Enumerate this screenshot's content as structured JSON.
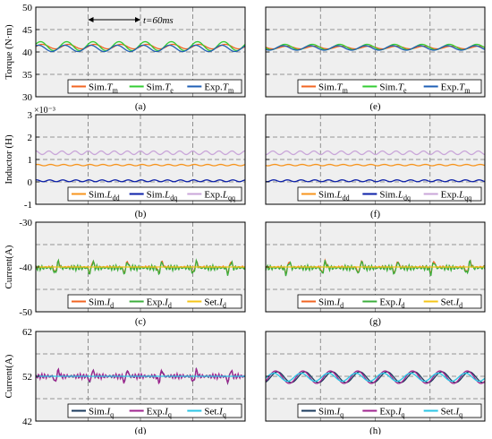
{
  "figure": {
    "background_plot": "#efefef",
    "grid_color": "#777777"
  },
  "rows": [
    {
      "id": "torque",
      "ylabel": "Torque (N·m)",
      "yticks": [
        "50",
        "45",
        "40",
        "35",
        "30"
      ],
      "ylim": [
        30,
        50
      ],
      "exponent_label": "",
      "panels": [
        {
          "tag": "(a)",
          "annotation": "t=60ms",
          "legend": [
            {
              "base": "Sim.",
              "sub": "m",
              "var": "T",
              "color": "#f26522"
            },
            {
              "base": "Sim.",
              "sub": "e",
              "var": "T",
              "color": "#33cc33"
            },
            {
              "base": "Exp.",
              "sub": "m",
              "var": "T",
              "color": "#1f5fb5"
            }
          ]
        },
        {
          "tag": "(e)",
          "annotation": "",
          "legend": [
            {
              "base": "Sim.",
              "sub": "m",
              "var": "T",
              "color": "#f26522"
            },
            {
              "base": "Sim.",
              "sub": "e",
              "var": "T",
              "color": "#33cc33"
            },
            {
              "base": "Exp.",
              "sub": "m",
              "var": "T",
              "color": "#1f5fb5"
            }
          ]
        }
      ]
    },
    {
      "id": "inductor",
      "ylabel": "Inductor (H)",
      "yticks": [
        "3",
        "2",
        "1",
        "0",
        "-1"
      ],
      "ylim": [
        -1,
        3
      ],
      "exponent_label": "×10⁻³",
      "panels": [
        {
          "tag": "(b)",
          "annotation": "",
          "legend": [
            {
              "base": "Sim.",
              "sub": "dd",
              "var": "L",
              "color": "#f7941d"
            },
            {
              "base": "Sim.",
              "sub": "dq",
              "var": "L",
              "color": "#0b1fa8"
            },
            {
              "base": "Exp.",
              "sub": "qq",
              "var": "L",
              "color": "#c9a6d9"
            }
          ]
        },
        {
          "tag": "(f)",
          "annotation": "",
          "legend": [
            {
              "base": "Sim.",
              "sub": "dd",
              "var": "L",
              "color": "#f7941d"
            },
            {
              "base": "Sim.",
              "sub": "dq",
              "var": "L",
              "color": "#0b1fa8"
            },
            {
              "base": "Exp.",
              "sub": "qq",
              "var": "L",
              "color": "#c9a6d9"
            }
          ]
        }
      ]
    },
    {
      "id": "id_current",
      "ylabel": "Current(A)",
      "yticks": [
        "-30",
        "-40",
        "-50"
      ],
      "ylim": [
        -50,
        -30
      ],
      "exponent_label": "",
      "panels": [
        {
          "tag": "(c)",
          "annotation": "",
          "legend": [
            {
              "base": "Sim.",
              "sub": "d",
              "var": "I",
              "color": "#f26522"
            },
            {
              "base": "Exp.",
              "sub": "d",
              "var": "I",
              "color": "#3cae3c"
            },
            {
              "base": "Set.",
              "sub": "d",
              "var": "I",
              "color": "#f5c518"
            }
          ]
        },
        {
          "tag": "(g)",
          "annotation": "",
          "legend": [
            {
              "base": "Sim.",
              "sub": "d",
              "var": "I",
              "color": "#f26522"
            },
            {
              "base": "Exp.",
              "sub": "d",
              "var": "I",
              "color": "#3cae3c"
            },
            {
              "base": "Set.",
              "sub": "d",
              "var": "I",
              "color": "#f5c518"
            }
          ]
        }
      ]
    },
    {
      "id": "iq_current",
      "ylabel": "Current(A)",
      "yticks": [
        "62",
        "52",
        "42"
      ],
      "ylim": [
        42,
        62
      ],
      "exponent_label": "",
      "panels": [
        {
          "tag": "(d)",
          "annotation": "",
          "legend": [
            {
              "base": "Sim.",
              "sub": "q",
              "var": "I",
              "color": "#1a3a5c"
            },
            {
              "base": "Exp.",
              "sub": "q",
              "var": "I",
              "color": "#a0258f"
            },
            {
              "base": "Set.",
              "sub": "q",
              "var": "I",
              "color": "#29c5e6"
            }
          ]
        },
        {
          "tag": "(h)",
          "annotation": "",
          "legend": [
            {
              "base": "Sim.",
              "sub": "q",
              "var": "I",
              "color": "#1a3a5c"
            },
            {
              "base": "Exp.",
              "sub": "q",
              "var": "I",
              "color": "#a0258f"
            },
            {
              "base": "Set.",
              "sub": "q",
              "var": "I",
              "color": "#29c5e6"
            }
          ]
        }
      ]
    }
  ],
  "chart_data": [
    {
      "type": "line",
      "panel": "(a)",
      "ylabel": "Torque (N·m)",
      "ylim": [
        30,
        50
      ],
      "grid": true,
      "legend": "bottom",
      "series": [
        {
          "name": "Sim.Tm",
          "level": 41.2,
          "ripple": 0.5,
          "period": 0.125,
          "color": "#f26522"
        },
        {
          "name": "Sim.Te",
          "level": 41.3,
          "ripple": 1.0,
          "period": 0.125,
          "color": "#33cc33"
        },
        {
          "name": "Exp.Tm",
          "level": 40.8,
          "ripple": 0.7,
          "period": 0.125,
          "color": "#1f5fb5"
        }
      ]
    },
    {
      "type": "line",
      "panel": "(e)",
      "ylabel": "Torque (N·m)",
      "ylim": [
        30,
        50
      ],
      "grid": true,
      "legend": "bottom",
      "series": [
        {
          "name": "Sim.Tm",
          "level": 41.0,
          "ripple": 0.3,
          "period": 0.125,
          "color": "#f26522"
        },
        {
          "name": "Sim.Te",
          "level": 41.1,
          "ripple": 0.6,
          "period": 0.125,
          "color": "#33cc33"
        },
        {
          "name": "Exp.Tm",
          "level": 40.9,
          "ripple": 0.5,
          "period": 0.125,
          "color": "#1f5fb5"
        }
      ]
    },
    {
      "type": "line",
      "panel": "(b)",
      "ylabel": "Inductor (H)",
      "ylim": [
        -1,
        3
      ],
      "scale": "x10^-3",
      "grid": true,
      "legend": "bottom",
      "series": [
        {
          "name": "Sim.Ldd",
          "level": 0.75,
          "ripple": 0.03,
          "period": 0.0625,
          "color": "#f7941d"
        },
        {
          "name": "Sim.Ldq",
          "level": 0.05,
          "ripple": 0.04,
          "period": 0.0625,
          "color": "#0b1fa8"
        },
        {
          "name": "Exp.Lqq",
          "level": 1.3,
          "ripple": 0.08,
          "period": 0.0625,
          "color": "#c9a6d9"
        }
      ]
    },
    {
      "type": "line",
      "panel": "(f)",
      "ylabel": "Inductor (H)",
      "ylim": [
        -1,
        3
      ],
      "scale": "x10^-3",
      "grid": true,
      "legend": "bottom",
      "series": [
        {
          "name": "Sim.Ldd",
          "level": 0.75,
          "ripple": 0.03,
          "period": 0.0625,
          "color": "#f7941d"
        },
        {
          "name": "Sim.Ldq",
          "level": 0.05,
          "ripple": 0.04,
          "period": 0.0625,
          "color": "#0b1fa8"
        },
        {
          "name": "Exp.Lqq",
          "level": 1.3,
          "ripple": 0.08,
          "period": 0.0625,
          "color": "#c9a6d9"
        }
      ]
    },
    {
      "type": "line",
      "panel": "(c)",
      "ylabel": "Current(A)",
      "ylim": [
        -50,
        -30
      ],
      "grid": true,
      "legend": "bottom",
      "series": [
        {
          "name": "Sim.Id",
          "level": -40,
          "ripple": 0.3,
          "spikes": 6,
          "color": "#f26522"
        },
        {
          "name": "Exp.Id",
          "level": -40.2,
          "ripple": 0.6,
          "spikes": 6,
          "color": "#3cae3c"
        },
        {
          "name": "Set.Id",
          "level": -40,
          "ripple": 0,
          "color": "#f5c518"
        }
      ]
    },
    {
      "type": "line",
      "panel": "(g)",
      "ylabel": "Current(A)",
      "ylim": [
        -50,
        -30
      ],
      "grid": true,
      "legend": "bottom",
      "series": [
        {
          "name": "Sim.Id",
          "level": -40,
          "ripple": 0.3,
          "spikes": 6,
          "color": "#f26522"
        },
        {
          "name": "Exp.Id",
          "level": -40.2,
          "ripple": 0.6,
          "spikes": 6,
          "color": "#3cae3c"
        },
        {
          "name": "Set.Id",
          "level": -40,
          "ripple": 0,
          "color": "#f5c518"
        }
      ]
    },
    {
      "type": "line",
      "panel": "(d)",
      "ylabel": "Current(A)",
      "ylim": [
        42,
        62
      ],
      "grid": true,
      "legend": "bottom",
      "series": [
        {
          "name": "Sim.Iq",
          "level": 52,
          "ripple": 0.4,
          "spikes": 6,
          "color": "#1a3a5c"
        },
        {
          "name": "Exp.Iq",
          "level": 52,
          "ripple": 0.6,
          "spikes": 6,
          "color": "#a0258f"
        },
        {
          "name": "Set.Iq",
          "level": 52,
          "ripple": 0,
          "color": "#29c5e6"
        }
      ]
    },
    {
      "type": "line",
      "panel": "(h)",
      "ylabel": "Current(A)",
      "ylim": [
        42,
        62
      ],
      "grid": true,
      "legend": "bottom",
      "series": [
        {
          "name": "Sim.Iq",
          "level": 51.8,
          "ripple": 1.2,
          "period": 0.125,
          "color": "#1a3a5c"
        },
        {
          "name": "Exp.Iq",
          "level": 51.8,
          "ripple": 1.4,
          "period": 0.125,
          "color": "#a0258f"
        },
        {
          "name": "Set.Iq",
          "level": 51.8,
          "ripple": 0.9,
          "period": 0.125,
          "color": "#29c5e6"
        }
      ]
    }
  ]
}
